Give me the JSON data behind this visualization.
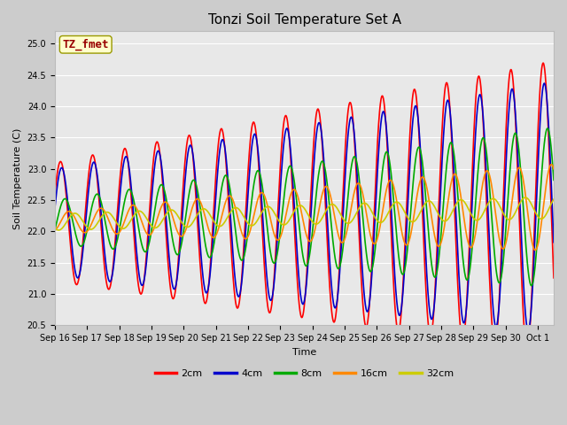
{
  "title": "Tonzi Soil Temperature Set A",
  "xlabel": "Time",
  "ylabel": "Soil Temperature (C)",
  "ylim": [
    20.5,
    25.2
  ],
  "xlim_days": 15.5,
  "annotation_text": "TZ_fmet",
  "annotation_bg": "#ffffcc",
  "annotation_fg": "#990000",
  "annotation_edge": "#999900",
  "fig_bg": "#cccccc",
  "plot_bg": "#e8e8e8",
  "grid_color": "#ffffff",
  "legend_labels": [
    "2cm",
    "4cm",
    "8cm",
    "16cm",
    "32cm"
  ],
  "line_colors": [
    "#ff0000",
    "#0000cc",
    "#00aa00",
    "#ff8800",
    "#cccc00"
  ],
  "line_widths": [
    1.2,
    1.2,
    1.2,
    1.2,
    1.2
  ],
  "tick_labels": [
    "Sep 16",
    "Sep 17",
    "Sep 18",
    "Sep 19",
    "Sep 20",
    "Sep 21",
    "Sep 22",
    "Sep 23",
    "Sep 24",
    "Sep 25",
    "Sep 26",
    "Sep 27",
    "Sep 28",
    "Sep 29",
    "Sep 30",
    "Oct 1"
  ],
  "title_fontsize": 11,
  "label_fontsize": 8,
  "tick_fontsize": 7
}
